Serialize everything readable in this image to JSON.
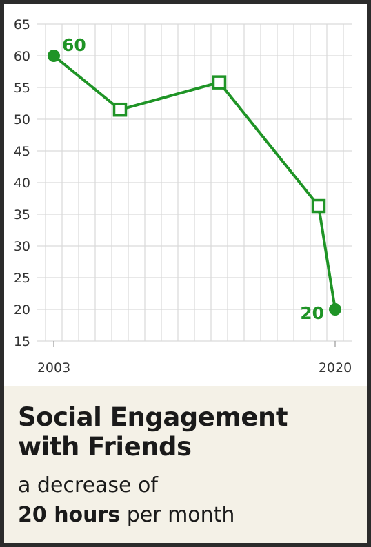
{
  "chart_data": {
    "type": "line",
    "title": "Social Engagement with Friends",
    "subtitle_line1": "a decrease of",
    "subtitle_bold": "20 hours",
    "subtitle_rest": " per month",
    "x_ticks": [
      "2003",
      "2020"
    ],
    "xlim": [
      2003,
      2020
    ],
    "ylim": [
      15,
      65
    ],
    "y_ticks": [
      15,
      20,
      25,
      30,
      35,
      40,
      45,
      50,
      55,
      60,
      65
    ],
    "grid": true,
    "series": [
      {
        "points": [
          {
            "x": 2003,
            "y": 60,
            "marker": "circle",
            "label": "60"
          },
          {
            "x": 2007,
            "y": 51.5,
            "marker": "square"
          },
          {
            "x": 2013,
            "y": 55.8,
            "marker": "square"
          },
          {
            "x": 2019,
            "y": 36.3,
            "marker": "square"
          },
          {
            "x": 2020,
            "y": 20,
            "marker": "circle",
            "label": "20"
          }
        ]
      }
    ],
    "colors": {
      "line": "#1f9426",
      "grid": "#d9d9d9",
      "axis_text": "#333333"
    }
  }
}
